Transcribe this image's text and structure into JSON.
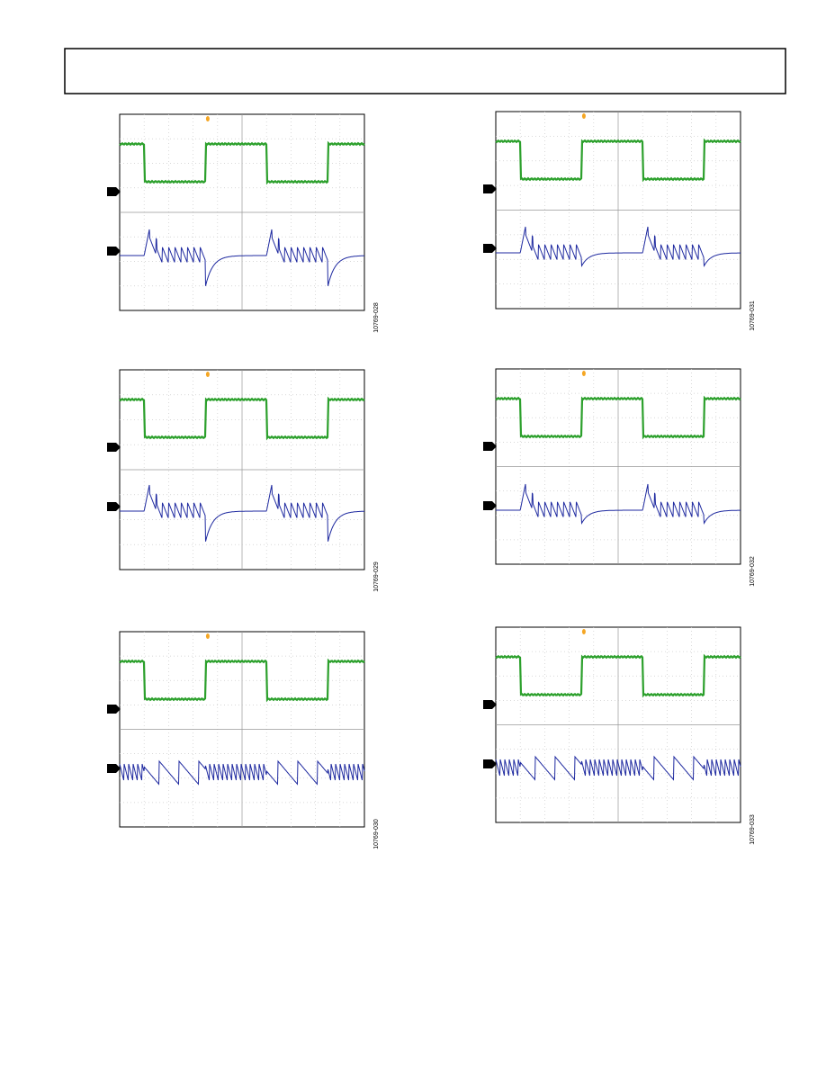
{
  "figures": [
    {
      "id": "10769-028"
    },
    {
      "id": "10769-031"
    },
    {
      "id": "10769-029"
    },
    {
      "id": "10769-032"
    },
    {
      "id": "10769-030"
    },
    {
      "id": "10769-033"
    }
  ]
}
